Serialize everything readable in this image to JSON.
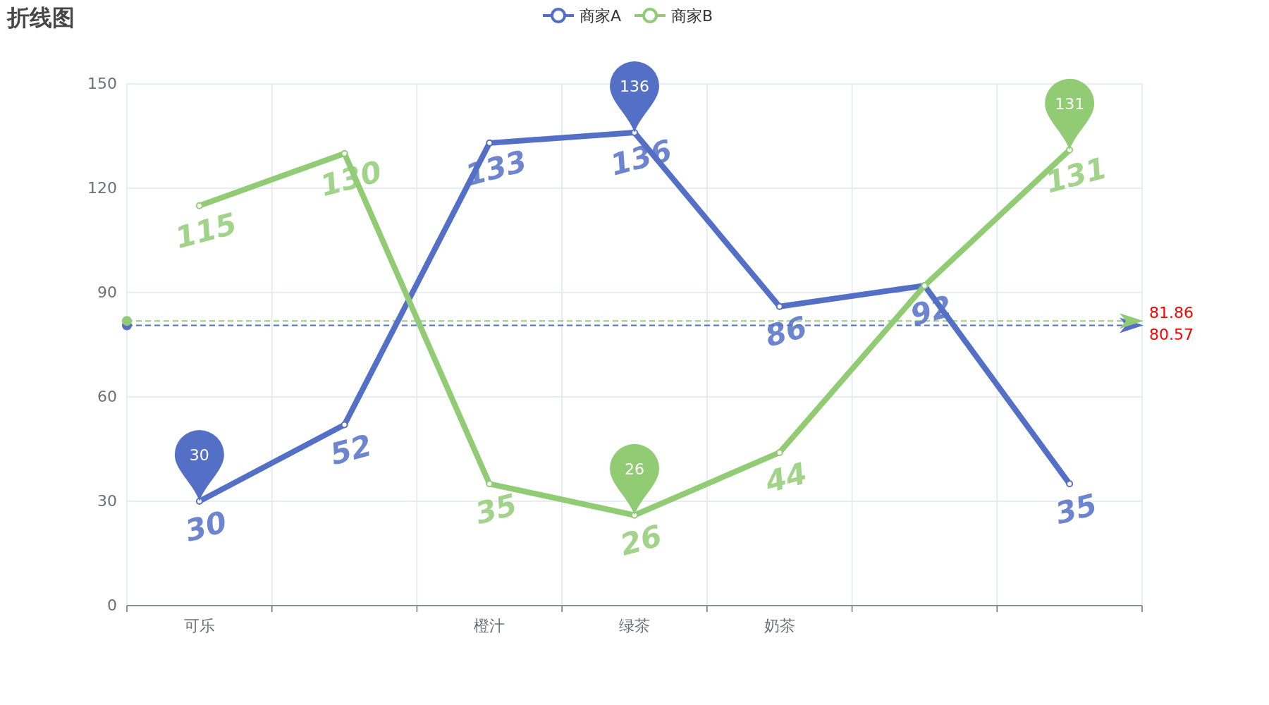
{
  "chart_data": {
    "type": "line",
    "title": "折线图",
    "categories": [
      "可乐",
      null,
      "橙汁",
      "绿茶",
      "奶茶",
      null,
      null
    ],
    "series": [
      {
        "name": "商家A",
        "color": "#5470c6",
        "values": [
          30,
          52,
          133,
          136,
          86,
          92,
          35
        ]
      },
      {
        "name": "商家B",
        "color": "#91cc75",
        "values": [
          115,
          130,
          35,
          26,
          44,
          92,
          131
        ],
        "value_labels": [
          "115",
          "130",
          "35",
          "26",
          "44",
          null,
          "131"
        ]
      }
    ],
    "ylim": [
      0,
      150
    ],
    "yticks": [
      0,
      30,
      60,
      90,
      120,
      150
    ],
    "grid": true,
    "legend": "top",
    "marker": "circle",
    "line_style": "solid",
    "data_labels": true,
    "ref_lines": [
      {
        "axis": "y",
        "value": 80.57,
        "label": "80.57",
        "color": "#5470c6",
        "line_style": "dashed"
      },
      {
        "axis": "y",
        "value": 81.86,
        "label": "81.86",
        "color": "#91cc75",
        "line_style": "dashed"
      }
    ],
    "annotations": [
      {
        "text": "30",
        "x": "可乐",
        "y": 30
      },
      {
        "text": "136",
        "x": "绿茶",
        "y": 136
      },
      {
        "text": "26",
        "x": "绿茶",
        "y": 26
      },
      {
        "text": "131",
        "y": 131
      }
    ]
  }
}
